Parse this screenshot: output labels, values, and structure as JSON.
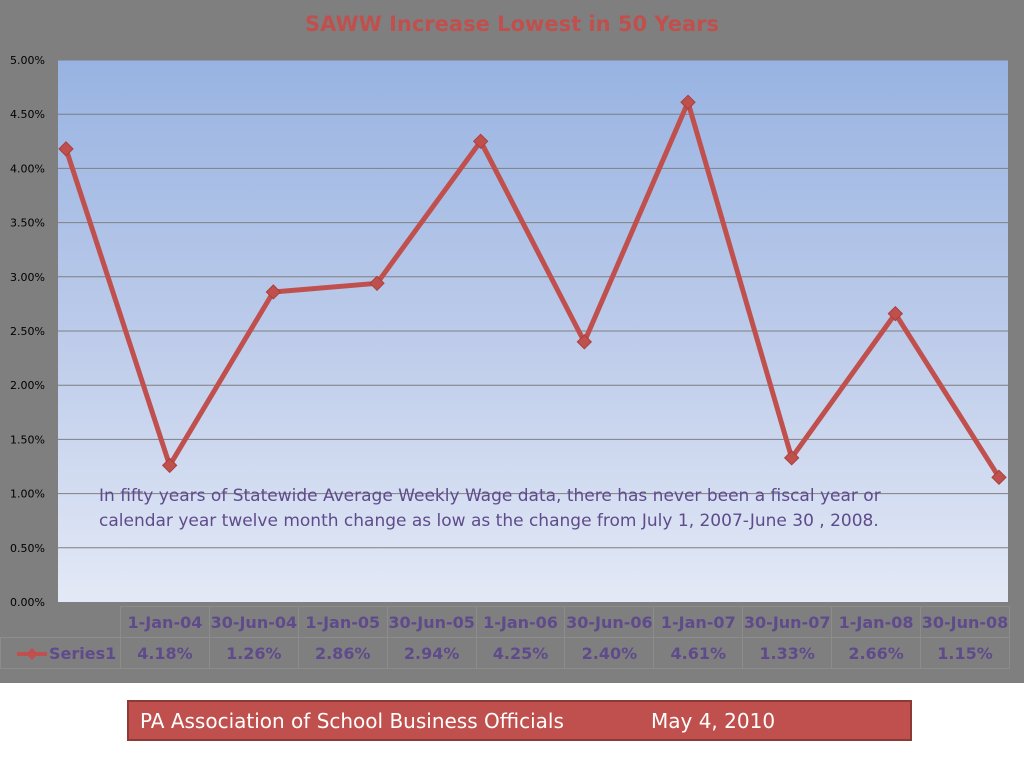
{
  "chart_data": {
    "type": "line",
    "title": "SAWW Increase Lowest in 50 Years",
    "categories": [
      "1-Jan-04",
      "30-Jun-04",
      "1-Jan-05",
      "30-Jun-05",
      "1-Jan-06",
      "30-Jun-06",
      "1-Jan-07",
      "30-Jun-07",
      "1-Jan-08",
      "30-Jun-08"
    ],
    "series": [
      {
        "name": "Series1",
        "values": [
          4.18,
          1.26,
          2.86,
          2.94,
          4.25,
          2.4,
          4.61,
          1.33,
          2.66,
          1.15
        ],
        "labels": [
          "4.18%",
          "1.26%",
          "2.86%",
          "2.94%",
          "4.25%",
          "2.40%",
          "4.61%",
          "1.33%",
          "2.66%",
          "1.15%"
        ],
        "color": "#c0504d",
        "marker": "diamond"
      }
    ],
    "y_ticks": [
      "0.00%",
      "0.50%",
      "1.00%",
      "1.50%",
      "2.00%",
      "2.50%",
      "3.00%",
      "3.50%",
      "4.00%",
      "4.50%",
      "5.00%"
    ],
    "ylim": [
      0,
      5
    ],
    "grid": true,
    "legend": "data-table",
    "annotation": "In fifty years of Statewide Average Weekly Wage data, there has never been a fiscal year or calendar year twelve month change as low as the change from July 1, 2007-June 30 , 2008."
  },
  "footer": {
    "organization": "PA Association of School Business Officials",
    "date": "May 4, 2010"
  },
  "colors": {
    "accent": "#c0504d",
    "table_text": "#5f4b8b",
    "slide_background": "#7f7f7f"
  }
}
